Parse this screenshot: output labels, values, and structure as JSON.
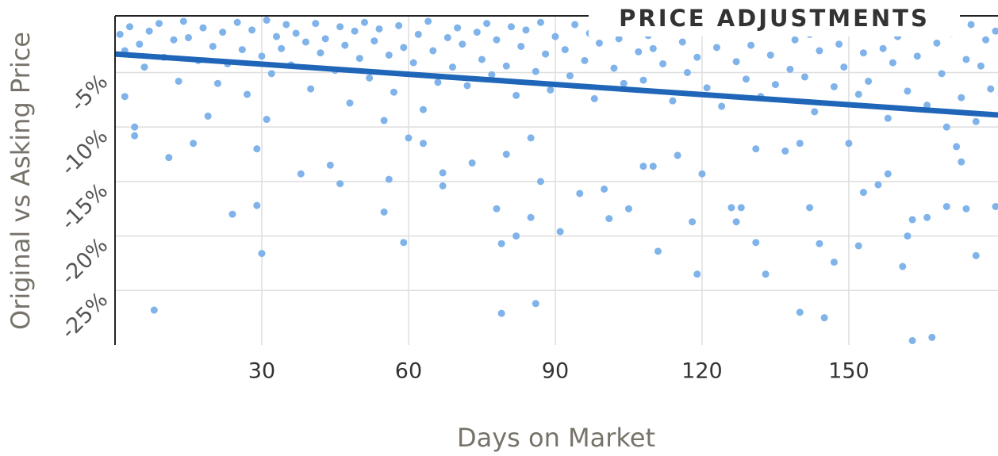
{
  "chart_data": {
    "type": "scatter",
    "title": "PRICE ADJUSTMENTS",
    "x_label": "Days on Market",
    "y_label": "Original vs Asking Price",
    "color": "#7fb3ea",
    "xlim": [
      0,
      180.5
    ],
    "ylim": [
      -30,
      0.2
    ],
    "xticks": [
      30,
      60,
      90,
      120,
      150
    ],
    "yticks": [
      {
        "value": -5,
        "label": "-5%"
      },
      {
        "value": -10,
        "label": "-10%"
      },
      {
        "value": -15,
        "label": "-15%"
      },
      {
        "value": -20,
        "label": "-20%"
      },
      {
        "value": -25,
        "label": "-25%"
      }
    ],
    "grid": true,
    "trend_line": {
      "x": [
        0,
        180.5
      ],
      "values": [
        -3.3,
        -8.9
      ],
      "color": "#1f66b8"
    },
    "x": [
      1,
      2,
      3,
      5,
      6,
      7,
      9,
      10,
      12,
      13,
      14,
      15,
      17,
      18,
      20,
      21,
      22,
      23,
      25,
      26,
      27,
      28,
      30,
      31,
      32,
      33,
      34,
      35,
      36,
      37,
      39,
      40,
      41,
      42,
      43,
      45,
      46,
      47,
      48,
      49,
      50,
      51,
      52,
      53,
      54,
      56,
      57,
      58,
      59,
      61,
      62,
      63,
      64,
      65,
      66,
      68,
      69,
      70,
      71,
      72,
      74,
      75,
      76,
      77,
      78,
      80,
      81,
      82,
      83,
      84,
      86,
      87,
      88,
      89,
      90,
      92,
      93,
      94,
      96,
      97,
      98,
      99,
      101,
      102,
      103,
      104,
      106,
      107,
      108,
      109,
      110,
      112,
      113,
      114,
      116,
      117,
      118,
      119,
      121,
      122,
      123,
      124,
      125,
      127,
      128,
      129,
      130,
      132,
      133,
      134,
      135,
      136,
      138,
      139,
      141,
      142,
      143,
      144,
      146,
      147,
      148,
      149,
      151,
      152,
      153,
      154,
      155,
      157,
      158,
      159,
      160,
      162,
      164,
      165,
      166,
      168,
      169,
      170,
      171,
      173,
      174,
      175,
      176,
      177,
      178,
      179,
      180,
      8,
      30,
      24,
      29,
      29,
      11,
      16,
      38,
      44,
      46,
      55,
      56,
      59,
      79,
      79,
      82,
      86,
      85,
      78,
      91,
      95,
      101,
      105,
      111,
      118,
      119,
      120,
      126,
      128,
      127,
      131,
      133,
      140,
      142,
      144,
      145,
      147,
      152,
      156,
      158,
      161,
      162,
      163,
      163,
      166,
      167,
      170,
      174,
      176,
      180,
      172,
      173,
      150,
      153,
      140,
      137,
      131,
      115,
      108,
      110,
      100,
      87,
      85,
      80,
      73,
      67,
      67,
      63,
      60,
      55,
      4,
      4,
      19,
      31,
      2
    ],
    "values": [
      -1.5,
      -3,
      -0.8,
      -2.4,
      -4.5,
      -1.2,
      -0.5,
      -3.6,
      -2,
      -5.8,
      -0.3,
      -1.8,
      -3.9,
      -0.9,
      -2.6,
      -6,
      -1.3,
      -4.2,
      -0.4,
      -2.9,
      -7,
      -1.1,
      -3.5,
      -0.2,
      -5.1,
      -1.7,
      -2.8,
      -0.6,
      -4.3,
      -1.4,
      -2.2,
      -6.5,
      -0.5,
      -3.2,
      -1.9,
      -4.8,
      -0.8,
      -2.5,
      -7.8,
      -1.2,
      -3.7,
      -0.4,
      -5.5,
      -2.1,
      -1,
      -3.4,
      -6.8,
      -0.7,
      -2.7,
      -4.1,
      -1.5,
      -8.4,
      -0.3,
      -3,
      -5.9,
      -1.8,
      -4.5,
      -0.9,
      -2.4,
      -6.2,
      -1.3,
      -3.8,
      -0.5,
      -5.2,
      -2,
      -4.4,
      -0.8,
      -7.1,
      -2.6,
      -1.1,
      -4.9,
      -0.4,
      -3.3,
      -6.6,
      -1.7,
      -2.9,
      -5.3,
      -0.6,
      -3.9,
      -1.4,
      -7.4,
      -2.3,
      -0.9,
      -4.6,
      -1.9,
      -6,
      -0.3,
      -3.1,
      -5.7,
      -1.6,
      -2.8,
      -4.2,
      -0.7,
      -7.6,
      -2.2,
      -5,
      -1,
      -3.6,
      -6.4,
      -0.5,
      -2.7,
      -8.1,
      -1.3,
      -4,
      -0.8,
      -5.6,
      -2.5,
      -7.2,
      -1.2,
      -3.4,
      -6.1,
      -0.6,
      -4.7,
      -2,
      -5.4,
      -1.5,
      -8.6,
      -3,
      -0.9,
      -6.3,
      -2.4,
      -4.5,
      -1.1,
      -7,
      -3.2,
      -5.8,
      -0.4,
      -2.8,
      -9.2,
      -4.1,
      -1.7,
      -6.7,
      -3.5,
      -0.8,
      -8,
      -2.3,
      -5.1,
      -10,
      -1.4,
      -7.3,
      -3.8,
      -0.6,
      -9.5,
      -4.4,
      -2,
      -6.5,
      -1.2,
      -26.8,
      -21.6,
      -18,
      -17.2,
      -12,
      -12.8,
      -11.5,
      -14.3,
      -13.5,
      -15.2,
      -17.8,
      -14.8,
      -20.6,
      -20.7,
      -27.1,
      -20,
      -26.2,
      -18.3,
      -17.5,
      -19.6,
      -16.1,
      -18.4,
      -17.5,
      -21.4,
      -18.7,
      -23.5,
      -14.3,
      -17.4,
      -17.4,
      -18.7,
      -20.6,
      -23.5,
      -27,
      -17.4,
      -20.7,
      -27.5,
      -22.4,
      -20.9,
      -15.3,
      -14.3,
      -22.8,
      -20,
      -29.6,
      -18.5,
      -18.3,
      -29.3,
      -17.3,
      -17.5,
      -21.8,
      -17.3,
      -11.8,
      -13.2,
      -11.5,
      -16,
      -11.5,
      -12.2,
      -12,
      -12.6,
      -13.6,
      -13.6,
      -15.7,
      -15,
      -11,
      -12.5,
      -13.3,
      -14.2,
      -15.4,
      -11.5,
      -11,
      -9.4,
      -10.8,
      -10,
      -9,
      -9.3,
      -7.2
    ]
  }
}
